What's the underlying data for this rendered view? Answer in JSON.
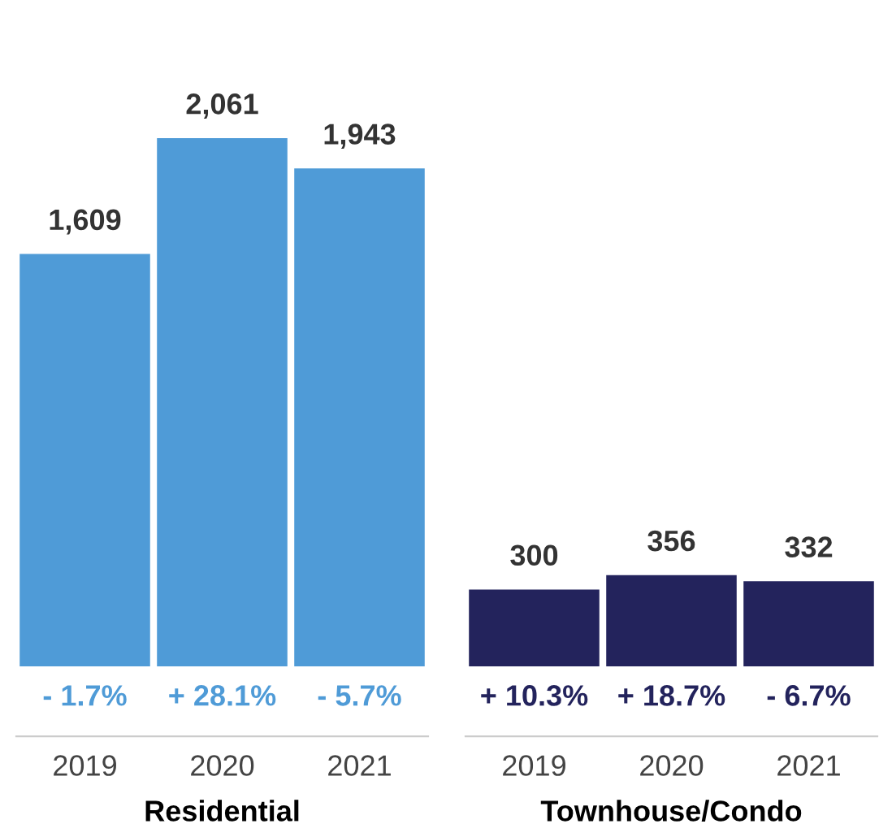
{
  "chart_data": [
    {
      "type": "bar",
      "categories": [
        "2019",
        "2020",
        "2021"
      ],
      "values": [
        1609,
        2061,
        1943
      ],
      "value_labels": [
        "1,609",
        "2,061",
        "1,943"
      ],
      "color": "#4f9bd7",
      "tick_labels": "x",
      "xlabel": "Residential",
      "annotations": [
        "- 1.7%",
        "+ 28.1%",
        "- 5.7%"
      ]
    },
    {
      "type": "bar",
      "categories": [
        "2019",
        "2020",
        "2021"
      ],
      "values": [
        300,
        356,
        332
      ],
      "value_labels": [
        "300",
        "356",
        "332"
      ],
      "color": "#23235c",
      "tick_labels": "x",
      "xlabel": "Townhouse/Condo",
      "annotations": [
        "+ 10.3%",
        "+ 18.7%",
        "- 6.7%"
      ]
    }
  ]
}
